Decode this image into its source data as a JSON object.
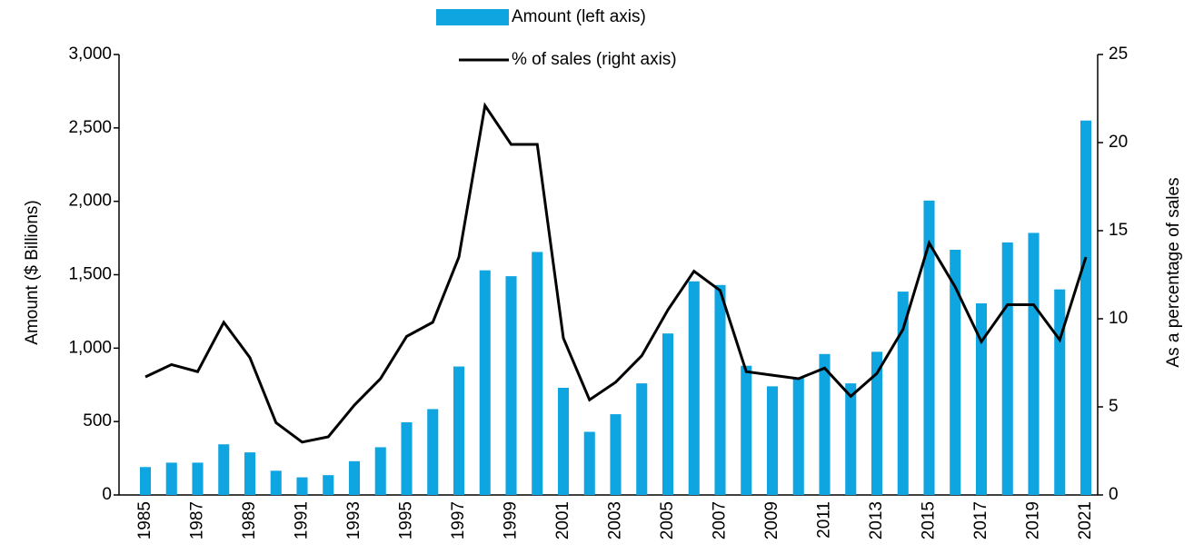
{
  "chart_data": {
    "type": "bar_line",
    "categories": [
      "1985",
      null,
      "1987",
      null,
      "1989",
      null,
      "1991",
      null,
      "1993",
      null,
      "1995",
      null,
      "1997",
      null,
      "1999",
      null,
      "2001",
      null,
      "2003",
      null,
      "2005",
      null,
      "2007",
      null,
      "2009",
      null,
      "2011",
      null,
      "2013",
      null,
      "2015",
      null,
      "2017",
      null,
      "2019",
      null,
      "2021"
    ],
    "series": [
      {
        "name": "Amount (left axis)",
        "type": "bar",
        "color": "#0ea5e1",
        "values": [
          190,
          220,
          220,
          345,
          290,
          165,
          120,
          135,
          230,
          325,
          495,
          585,
          875,
          1530,
          1490,
          1655,
          730,
          430,
          550,
          760,
          1100,
          1455,
          1430,
          880,
          740,
          800,
          960,
          760,
          975,
          1385,
          2005,
          1670,
          1305,
          1720,
          1785,
          1400,
          2550
        ]
      },
      {
        "name": "% of sales (right axis)",
        "type": "line",
        "axis": "y2",
        "color": "#000000",
        "values": [
          6.7,
          7.4,
          7.0,
          9.8,
          7.8,
          4.1,
          3.0,
          3.3,
          5.1,
          6.6,
          9.0,
          9.8,
          13.5,
          22.1,
          19.9,
          19.9,
          8.9,
          5.4,
          6.4,
          7.9,
          10.5,
          12.7,
          11.6,
          7.0,
          6.8,
          6.6,
          7.2,
          5.6,
          6.9,
          9.4,
          14.3,
          11.8,
          8.7,
          10.8,
          10.8,
          8.8,
          13.5
        ]
      }
    ],
    "ylabel": "Amount ($ Billions)",
    "y2label": "As a percentage of sales",
    "ylim": [
      0,
      3000
    ],
    "yticks": [
      0,
      500,
      {
        "value": 1000,
        "label": "1,000"
      },
      {
        "value": 1500,
        "label": "1,500"
      },
      {
        "value": 2000,
        "label": "2,000"
      },
      {
        "value": 2500,
        "label": "2,500"
      },
      {
        "value": 3000,
        "label": "3,000"
      }
    ],
    "y2lim": [
      0,
      25
    ],
    "y2ticks": [
      0,
      5,
      10,
      15,
      20,
      25
    ],
    "legend": "top",
    "grid": false
  }
}
